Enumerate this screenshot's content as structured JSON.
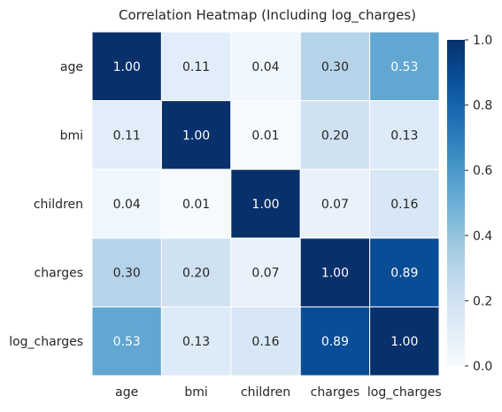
{
  "chart_data": {
    "type": "heatmap",
    "title": "Correlation Heatmap (Including log_charges)",
    "xlabel": "",
    "ylabel": "",
    "x_labels": [
      "age",
      "bmi",
      "children",
      "charges",
      "log_charges"
    ],
    "y_labels": [
      "age",
      "bmi",
      "children",
      "charges",
      "log_charges"
    ],
    "values": [
      [
        1.0,
        0.11,
        0.04,
        0.3,
        0.53
      ],
      [
        0.11,
        1.0,
        0.01,
        0.2,
        0.13
      ],
      [
        0.04,
        0.01,
        1.0,
        0.07,
        0.16
      ],
      [
        0.3,
        0.2,
        0.07,
        1.0,
        0.89
      ],
      [
        0.53,
        0.13,
        0.16,
        0.89,
        1.0
      ]
    ],
    "value_format": "0.00",
    "colormap": "Blues",
    "colorbar": {
      "min": 0.0,
      "max": 1.0,
      "ticks": [
        "0.0",
        "0.2",
        "0.4",
        "0.6",
        "0.8",
        "1.0"
      ]
    },
    "colors": {
      "low": "#f7fbff",
      "high": "#08306b",
      "cell_border": "#ffffff",
      "text_dark": "#262626",
      "text_light": "#ffffff"
    }
  }
}
